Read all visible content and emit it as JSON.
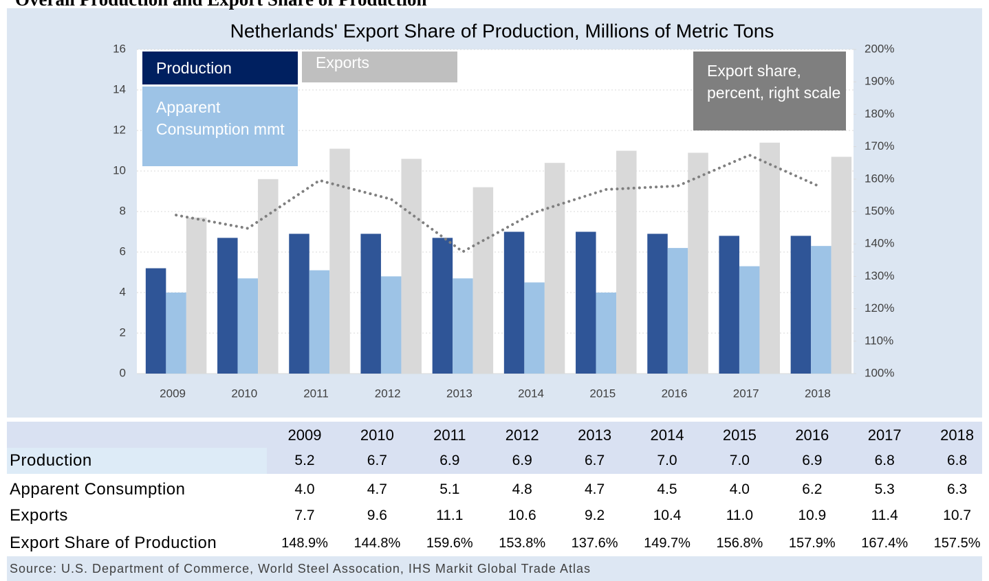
{
  "heading": "Overall Production and Export Share of Production",
  "chart_data": {
    "type": "bar",
    "title": "Netherlands' Export Share of Production, Millions of Metric Tons",
    "categories": [
      "2009",
      "2010",
      "2011",
      "2012",
      "2013",
      "2014",
      "2015",
      "2016",
      "2017",
      "2018"
    ],
    "series": [
      {
        "name": "Production",
        "type": "bar",
        "color": "#2f5597",
        "legend_color": "#002060",
        "values": [
          5.2,
          6.7,
          6.9,
          6.9,
          6.7,
          7.0,
          7.0,
          6.9,
          6.8,
          6.8
        ],
        "value_labels": [
          "5.2",
          "6.7",
          "6.9",
          "6.9",
          "6.7",
          "7.0",
          "7.0",
          "6.9",
          "6.8",
          "6.8"
        ]
      },
      {
        "name": "Apparent Consumption mmt",
        "type": "bar",
        "color": "#9dc3e6",
        "legend_color": "#9dc3e6",
        "values": [
          4.0,
          4.7,
          5.1,
          4.8,
          4.7,
          4.5,
          4.0,
          6.2,
          5.3,
          6.3
        ],
        "value_labels": [
          "4.0",
          "4.7",
          "5.1",
          "4.8",
          "4.7",
          "4.5",
          "4.0",
          "6.2",
          "5.3",
          "6.3"
        ]
      },
      {
        "name": "Exports",
        "type": "bar",
        "color": "#d9d9d9",
        "legend_color": "#bfbfbf",
        "values": [
          7.7,
          9.6,
          11.1,
          10.6,
          9.2,
          10.4,
          11.0,
          10.9,
          11.4,
          10.7
        ],
        "value_labels": [
          "7.7",
          "9.6",
          "11.1",
          "10.6",
          "9.2",
          "10.4",
          "11.0",
          "10.9",
          "11.4",
          "10.7"
        ]
      },
      {
        "name": "Export share, percent, right scale",
        "type": "line",
        "axis": "y2",
        "color": "#7f7f7f",
        "legend_color": "#7f7f7f",
        "values": [
          148.9,
          144.8,
          159.6,
          153.8,
          137.6,
          149.7,
          156.8,
          157.9,
          167.4,
          157.5
        ],
        "value_labels": [
          "148.9%",
          "144.8%",
          "159.6%",
          "153.8%",
          "137.6%",
          "149.7%",
          "156.8%",
          "157.9%",
          "167.4%",
          "157.5%"
        ]
      }
    ],
    "ylim": [
      0,
      16
    ],
    "yticks": [
      0,
      2,
      4,
      6,
      8,
      10,
      12,
      14,
      16
    ],
    "y2lim": [
      100,
      200
    ],
    "y2ticks": [
      {
        "value": 100,
        "label": "100%"
      },
      {
        "value": 110,
        "label": "110%"
      },
      {
        "value": 120,
        "label": "120%"
      },
      {
        "value": 130,
        "label": "130%"
      },
      {
        "value": 140,
        "label": "140%"
      },
      {
        "value": 150,
        "label": "150%"
      },
      {
        "value": 160,
        "label": "160%"
      },
      {
        "value": 170,
        "label": "170%"
      },
      {
        "value": 180,
        "label": "180%"
      },
      {
        "value": 190,
        "label": "190%"
      },
      {
        "value": 200,
        "label": "200%"
      }
    ],
    "grid": true
  },
  "table": {
    "row_labels": [
      "Production",
      "Apparent Consumption",
      "Exports",
      "Export Share of Production"
    ]
  },
  "source": "Source: U.S. Department of Commerce, World Steel Assocation, IHS Markit Global Trade Atlas"
}
